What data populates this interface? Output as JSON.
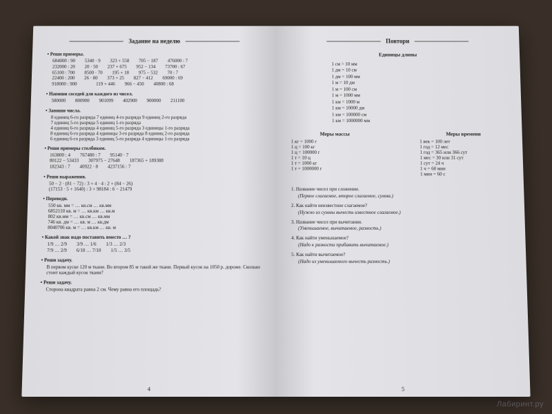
{
  "left": {
    "title": "Задание на неделю",
    "s1_head": "Реши примеры.",
    "s1_rows": [
      [
        "684000 : 90",
        "5340 · 9",
        "323 + 558",
        "705 − 187",
        "476000 : 7"
      ],
      [
        "232000 : 20",
        "20 · 50",
        "237 + 675",
        "952 − 134",
        "73700 : 67"
      ],
      [
        "65100 : 700",
        "8500 · 70",
        "195 + 18",
        "975 − 532",
        "70 : 7"
      ],
      [
        "22400 : 200",
        "26 · 80",
        "373 + 25",
        "827 − 412",
        "69000 : 69"
      ],
      [
        "918000 : 900",
        "",
        "119 + 446",
        "966 − 450",
        "40800 : 68"
      ]
    ],
    "s2_head": "Напиши соседей для каждого из чисел.",
    "s2_row": [
      "580000",
      "800900",
      "901099",
      "402900",
      "900000",
      "211100"
    ],
    "s3_head": "Запиши числа.",
    "s3_lines": [
      "8 единиц 6-го разряда 7 единиц 4-го разряда 9 единиц 2-го разряда",
      "7 единиц 5-го разряда 5 единиц 1-го разряда",
      "4 единиц 6-го разряда 4 единиц 5-го разряда 3 единицы 1-го разряда",
      "8 единиц 6-го разряда 4 единицы 3-го разряда 8 единиц 2-го разряда",
      "6 единиц 6-го разряда 3 единиц 5-го разряда 4 единицы 1-го разряда"
    ],
    "s4_head": "Реши примеры столбиком.",
    "s4_rows": [
      [
        "163800 : 4",
        "767480 : 7",
        "95140 · 7"
      ],
      [
        "80122 − 53433",
        "307975 − 27648",
        "187365 + 189388"
      ],
      [
        "182343 : 7",
        "40922 · 8",
        "4237156 : 7"
      ]
    ],
    "s5_head": "Реши выражения.",
    "s5_lines": [
      "50 − 2 · (81 − 72) : 3 + 4 · 4 : 2 + (84 − 26)",
      "(17153 · 5 + 1640) : 3 + 98184 : 6 − 21479"
    ],
    "s6_head": "Переведи.",
    "s6_lines": [
      "550 кв. мм = … кв.см … кв.мм",
      "6852110 кв. м = … кв.км … кв.м",
      "802 кв.мм = … кв.см … кв.мм",
      "746 кв. дм = … кв. м … кв.дм",
      "8040706 кв. м = … кв.км … кв. м"
    ],
    "s7_head": "Какой знак надо поставить вместо … ?",
    "s7_rows": [
      [
        "1/9 … 2/9",
        "3/9 … 1/6",
        "1/3 … 2/3"
      ],
      [
        "7/9 … 2/9",
        "6/10 … 7/10",
        "1/5 … 3/5"
      ]
    ],
    "s8_head": "Реши задачу.",
    "s8_text": "В первом куске 120 м ткани. Во втором 85 м такой же ткани. Первый кусок на 1050 р. дороже. Сколько стоит каждый кусок ткани?",
    "s9_head": "Реши задачу.",
    "s9_text": "Сторона квадрата равна 2 см. Чему равна его площадь?",
    "pagenum": "4"
  },
  "right": {
    "title": "Повтори",
    "len_title": "Единицы длины",
    "len": [
      "1 см = 10 мм",
      "1 дм = 10 см",
      "1 дм = 100 мм",
      "1 м = 10 дм",
      "1 м = 100 см",
      "1 м = 1000 мм",
      "1 км = 1000 м",
      "1 км = 10000 дм",
      "1 км = 100000 см",
      "1 км = 1000000 мм"
    ],
    "mass_title": "Меры массы",
    "mass": [
      "1 кг = 1000 г",
      "1 ц = 100 кг",
      "1 ц = 100000 г",
      "1 т = 10 ц",
      "1 т = 1000 кг",
      "1 т = 1000000 г"
    ],
    "time_title": "Меры времени",
    "time": [
      "1 век = 100 лет",
      "1 год = 12 мес",
      "1 год = 365 или 366 сут",
      "1 мес = 30 или 31 сут",
      "1 сут = 24 ч",
      "1 ч = 60 мин",
      "1 мин = 60 с"
    ],
    "qa": [
      {
        "q": "1. Название чисел при сложении.",
        "a": "(Первое слагаемое, второе слагаемое, сумма.)"
      },
      {
        "q": "2. Как найти неизвестное слагаемое?",
        "a": "(Нужно из суммы вычесть известное слагаемое.)"
      },
      {
        "q": "3. Название чисел при вычитании.",
        "a": "(Уменьшаемое, вычитаемое, разность.)"
      },
      {
        "q": "4. Как найти уменьшаемое?",
        "a": "(Надо к разности прибавить вычитаемое.)"
      },
      {
        "q": "5. Как найти вычитаемое?",
        "a": "(Надо из уменьшаемого вычесть разность.)"
      }
    ],
    "pagenum": "5"
  },
  "watermark": "Лабиринт.ру"
}
